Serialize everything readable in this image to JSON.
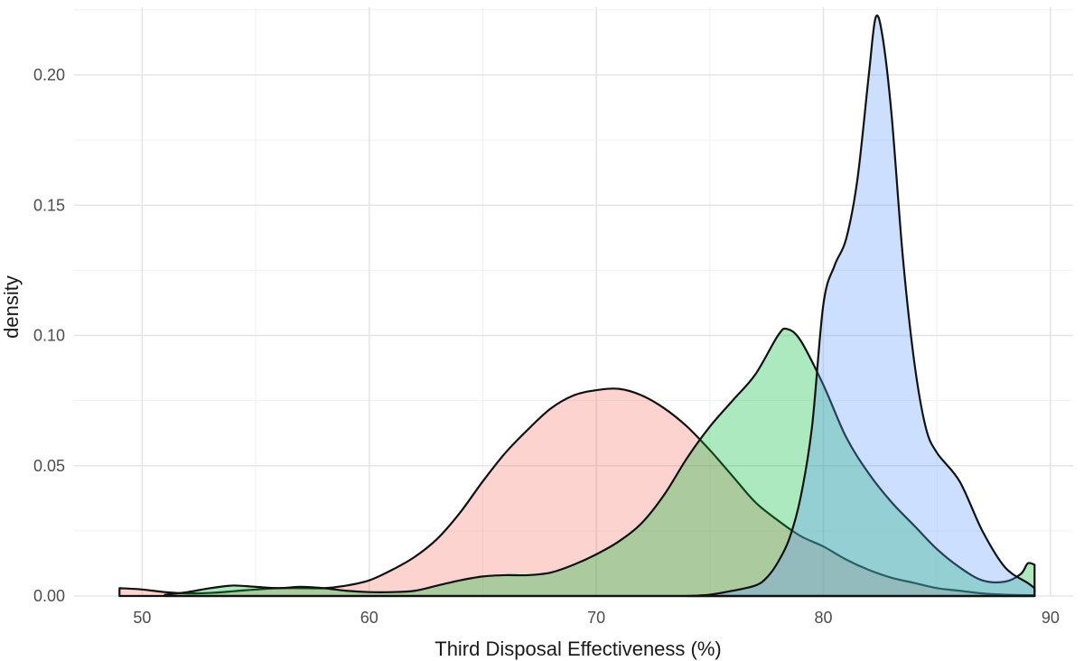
{
  "chart_data": {
    "type": "area",
    "title": "",
    "xlabel": "Third Disposal Effectiveness (%)",
    "ylabel": "density",
    "xlim": [
      47,
      91
    ],
    "ylim": [
      0,
      0.226
    ],
    "x_ticks": [
      50,
      60,
      70,
      80,
      90
    ],
    "y_ticks": [
      0.0,
      0.05,
      0.1,
      0.15,
      0.2
    ],
    "x_tick_labels": [
      "50",
      "60",
      "70",
      "80",
      "90"
    ],
    "y_tick_labels": [
      "0.00",
      "0.05",
      "0.10",
      "0.15",
      "0.20"
    ],
    "grid": true,
    "legend": "none",
    "series": [
      {
        "color": "#f8766d",
        "points": [
          [
            49,
            0.003
          ],
          [
            50,
            0.0025
          ],
          [
            51,
            0.0015
          ],
          [
            52,
            0.001
          ],
          [
            53,
            0.0012
          ],
          [
            54,
            0.0018
          ],
          [
            55,
            0.0025
          ],
          [
            56,
            0.003
          ],
          [
            57,
            0.003
          ],
          [
            58,
            0.003
          ],
          [
            59,
            0.004
          ],
          [
            60,
            0.006
          ],
          [
            61,
            0.01
          ],
          [
            62,
            0.015
          ],
          [
            63,
            0.022
          ],
          [
            64,
            0.032
          ],
          [
            65,
            0.044
          ],
          [
            66,
            0.055
          ],
          [
            67,
            0.064
          ],
          [
            68,
            0.072
          ],
          [
            69,
            0.077
          ],
          [
            70,
            0.079
          ],
          [
            71,
            0.0795
          ],
          [
            72,
            0.077
          ],
          [
            73,
            0.072
          ],
          [
            74,
            0.065
          ],
          [
            75,
            0.056
          ],
          [
            76,
            0.046
          ],
          [
            77,
            0.036
          ],
          [
            78,
            0.029
          ],
          [
            79,
            0.023
          ],
          [
            80,
            0.019
          ],
          [
            81,
            0.014
          ],
          [
            82,
            0.01
          ],
          [
            83,
            0.007
          ],
          [
            84,
            0.005
          ],
          [
            85,
            0.003
          ],
          [
            86,
            0.002
          ],
          [
            87,
            0.001
          ],
          [
            88,
            0.0005
          ],
          [
            89.3,
            0.0003
          ]
        ]
      },
      {
        "color": "#00ba38",
        "points": [
          [
            51,
            0.0005
          ],
          [
            52,
            0.0015
          ],
          [
            53,
            0.003
          ],
          [
            54,
            0.004
          ],
          [
            55,
            0.0035
          ],
          [
            56,
            0.003
          ],
          [
            57,
            0.0035
          ],
          [
            58,
            0.003
          ],
          [
            59,
            0.002
          ],
          [
            60,
            0.0015
          ],
          [
            61,
            0.0015
          ],
          [
            62,
            0.002
          ],
          [
            63,
            0.004
          ],
          [
            64,
            0.006
          ],
          [
            65,
            0.0075
          ],
          [
            66,
            0.008
          ],
          [
            67,
            0.008
          ],
          [
            68,
            0.009
          ],
          [
            69,
            0.012
          ],
          [
            70,
            0.016
          ],
          [
            71,
            0.021
          ],
          [
            72,
            0.028
          ],
          [
            73,
            0.039
          ],
          [
            74,
            0.053
          ],
          [
            75,
            0.065
          ],
          [
            76,
            0.075
          ],
          [
            77,
            0.085
          ],
          [
            78,
            0.1
          ],
          [
            78.4,
            0.1025
          ],
          [
            79,
            0.098
          ],
          [
            80,
            0.081
          ],
          [
            81,
            0.061
          ],
          [
            82,
            0.047
          ],
          [
            83,
            0.036
          ],
          [
            84,
            0.027
          ],
          [
            85,
            0.018
          ],
          [
            86,
            0.011
          ],
          [
            87,
            0.006
          ],
          [
            88,
            0.0055
          ],
          [
            88.7,
            0.0085
          ],
          [
            89,
            0.0125
          ],
          [
            89.3,
            0.012
          ]
        ]
      },
      {
        "color": "#619cff",
        "points": [
          [
            74,
            0.0
          ],
          [
            75,
            0.0005
          ],
          [
            76,
            0.002
          ],
          [
            77,
            0.004
          ],
          [
            77.5,
            0.007
          ],
          [
            78,
            0.013
          ],
          [
            78.5,
            0.022
          ],
          [
            79,
            0.038
          ],
          [
            79.5,
            0.065
          ],
          [
            80,
            0.112
          ],
          [
            80.5,
            0.127
          ],
          [
            81,
            0.137
          ],
          [
            81.5,
            0.16
          ],
          [
            82,
            0.2
          ],
          [
            82.3,
            0.222
          ],
          [
            82.6,
            0.215
          ],
          [
            83,
            0.185
          ],
          [
            83.5,
            0.13
          ],
          [
            84,
            0.09
          ],
          [
            84.5,
            0.065
          ],
          [
            85,
            0.055
          ],
          [
            86,
            0.044
          ],
          [
            87,
            0.025
          ],
          [
            88,
            0.011
          ],
          [
            89,
            0.005
          ],
          [
            89.3,
            0.003
          ]
        ]
      }
    ]
  }
}
